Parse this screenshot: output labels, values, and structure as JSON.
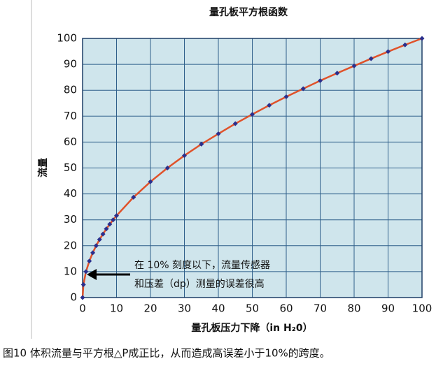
{
  "chart_data": {
    "type": "line",
    "title": "量孔板平方根函数",
    "x_label": "量孔板压力下降（in H₂0）",
    "y_label": "流量",
    "annotation": [
      "在 10% 刻度以下，流量传感器",
      "和压差（dp）测量的误差很高"
    ],
    "caption": "图10 体积流量与平方根△P成正比，从而造成高误差小于10%的跨度。",
    "x": [
      0,
      0.25,
      1,
      2,
      3,
      4,
      5,
      6,
      7,
      8,
      9,
      10,
      15,
      20,
      25,
      30,
      35,
      40,
      45,
      50,
      55,
      60,
      65,
      70,
      75,
      80,
      85,
      90,
      95,
      100
    ],
    "series": [
      {
        "color": "#e0522a",
        "marker_color": "#2b2f8c",
        "values": [
          0,
          5,
          10,
          14.1,
          17.3,
          20,
          22.4,
          24.5,
          26.5,
          28.3,
          30,
          31.6,
          38.7,
          44.7,
          50,
          54.8,
          59.2,
          63.2,
          67.1,
          70.7,
          74.2,
          77.5,
          80.6,
          83.7,
          86.6,
          89.4,
          92.2,
          94.9,
          97.5,
          100
        ]
      }
    ],
    "xlim": [
      0,
      100
    ],
    "ylim": [
      0,
      100
    ],
    "xticks": [
      0,
      10,
      20,
      30,
      40,
      50,
      60,
      70,
      80,
      90,
      100
    ],
    "yticks": [
      0,
      10,
      20,
      30,
      40,
      50,
      60,
      70,
      80,
      90,
      100
    ],
    "grid": true,
    "background": "#cfe5ec"
  }
}
